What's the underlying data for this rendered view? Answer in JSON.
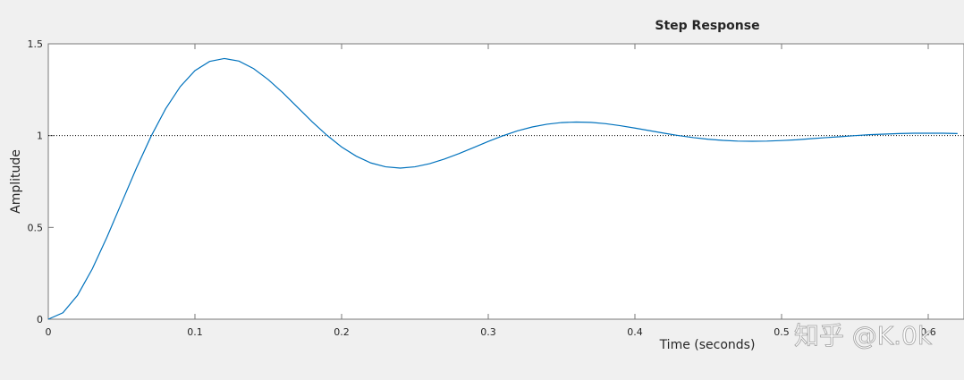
{
  "chart_data": {
    "type": "line",
    "title": "Step Response",
    "xlabel": "Time (seconds)",
    "ylabel": "Amplitude",
    "x": [
      0,
      0.01,
      0.02,
      0.03,
      0.04,
      0.05,
      0.06,
      0.07,
      0.08,
      0.09,
      0.1,
      0.11,
      0.12,
      0.13,
      0.14,
      0.15,
      0.16,
      0.17,
      0.18,
      0.19,
      0.2,
      0.21,
      0.22,
      0.23,
      0.24,
      0.25,
      0.26,
      0.27,
      0.28,
      0.29,
      0.3,
      0.31,
      0.32,
      0.33,
      0.34,
      0.35,
      0.36,
      0.37,
      0.38,
      0.39,
      0.4,
      0.41,
      0.42,
      0.43,
      0.44,
      0.45,
      0.46,
      0.47,
      0.48,
      0.49,
      0.5,
      0.51,
      0.52,
      0.53,
      0.54,
      0.55,
      0.56,
      0.57,
      0.58,
      0.59,
      0.6,
      0.61,
      0.62
    ],
    "values": [
      0,
      0.035,
      0.131,
      0.274,
      0.447,
      0.634,
      0.821,
      0.995,
      1.146,
      1.267,
      1.354,
      1.404,
      1.42,
      1.406,
      1.365,
      1.305,
      1.233,
      1.154,
      1.075,
      1.002,
      0.938,
      0.888,
      0.851,
      0.83,
      0.823,
      0.83,
      0.847,
      0.872,
      0.902,
      0.935,
      0.968,
      0.999,
      1.026,
      1.047,
      1.062,
      1.071,
      1.074,
      1.072,
      1.065,
      1.054,
      1.041,
      1.027,
      1.013,
      1.0,
      0.989,
      0.98,
      0.974,
      0.97,
      0.969,
      0.97,
      0.973,
      0.977,
      0.983,
      0.989,
      0.994,
      1.0,
      1.005,
      1.008,
      1.011,
      1.013,
      1.013,
      1.013,
      1.011
    ],
    "color": "#0072bd",
    "reference_line": 1,
    "xlim": [
      0,
      0.6244
    ],
    "xticks": [
      0,
      0.1,
      0.2,
      0.3,
      0.4,
      0.5,
      0.6
    ],
    "ylim": [
      0,
      1.5
    ],
    "yticks": [
      0,
      0.5,
      1,
      1.5
    ],
    "watermark": "知乎 @K.0k"
  }
}
